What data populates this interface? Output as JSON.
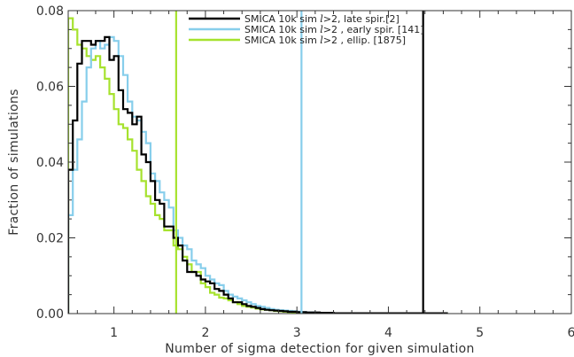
{
  "chart_data": {
    "type": "line",
    "title": "",
    "xlabel": "Number of sigma detection for given simulation",
    "ylabel": "Fraction of simulations",
    "xlim": [
      0.5,
      6
    ],
    "ylim": [
      0,
      0.08
    ],
    "xticks": [
      1,
      2,
      3,
      4,
      5,
      6
    ],
    "xtick_labels": [
      "1",
      "2",
      "3",
      "4",
      "5",
      "6"
    ],
    "yticks": [
      0,
      0.02,
      0.04,
      0.06,
      0.08
    ],
    "ytick_labels": [
      "0.00",
      "0.02",
      "0.04",
      "0.06",
      "0.08"
    ],
    "grid": false,
    "legend_position": "top-right",
    "bin_edges": [
      0.5,
      0.55,
      0.6,
      0.65,
      0.7,
      0.75,
      0.8,
      0.85,
      0.9,
      0.95,
      1.0,
      1.05,
      1.1,
      1.15,
      1.2,
      1.25,
      1.3,
      1.35,
      1.4,
      1.45,
      1.5,
      1.55,
      1.6,
      1.65,
      1.7,
      1.75,
      1.8,
      1.85,
      1.9,
      1.95,
      2.0,
      2.05,
      2.1,
      2.15,
      2.2,
      2.25,
      2.3,
      2.35,
      2.4,
      2.45,
      2.5,
      2.55,
      2.6,
      2.65,
      2.7,
      2.75,
      2.8,
      2.85,
      2.9,
      2.95,
      3.0,
      3.05,
      3.1,
      3.15,
      3.2,
      3.25,
      3.3,
      3.35,
      3.4,
      3.45,
      3.5,
      3.55,
      3.6,
      3.65,
      3.7,
      3.75,
      3.8,
      3.85,
      3.9,
      3.95,
      4.0,
      4.05,
      4.1,
      4.15,
      4.2,
      4.25,
      4.3,
      4.35,
      4.4,
      4.45,
      4.5,
      4.55,
      4.6,
      4.65
    ],
    "series": [
      {
        "name": "SMICA 10k sim ",
        "name_suffix": ">2, late spir.[2]",
        "color": "#000000",
        "values": [
          0.038,
          0.051,
          0.066,
          0.072,
          0.072,
          0.071,
          0.072,
          0.072,
          0.073,
          0.067,
          0.068,
          0.059,
          0.054,
          0.053,
          0.05,
          0.052,
          0.042,
          0.04,
          0.035,
          0.03,
          0.029,
          0.023,
          0.023,
          0.02,
          0.018,
          0.014,
          0.011,
          0.011,
          0.01,
          0.009,
          0.0085,
          0.008,
          0.0065,
          0.006,
          0.005,
          0.004,
          0.003,
          0.003,
          0.0025,
          0.002,
          0.0018,
          0.0015,
          0.0012,
          0.001,
          0.0009,
          0.0008,
          0.0007,
          0.0006,
          0.0005,
          0.0005,
          0.0004,
          0.0004,
          0.0003,
          0.0003,
          0.0003,
          0.0002,
          0.0002,
          0.0002,
          0.0001,
          0.0001,
          0.0001,
          0.0001,
          0.0001,
          0.0001,
          0.0001,
          0.0001,
          0.0001,
          0.0001,
          0.0001,
          0.0001,
          0.0001,
          0.0001,
          0.0001,
          0.0001,
          0.0001,
          0.0001,
          0.0001,
          0.0001,
          0.0001,
          0.0001,
          0.0001,
          0.0001,
          0.0001
        ],
        "marker_x": 4.38
      },
      {
        "name": "SMICA 10k sim ",
        "name_suffix": ">2 , early spir. [141]",
        "color": "#87CEEB",
        "values": [
          0.026,
          0.038,
          0.046,
          0.056,
          0.065,
          0.07,
          0.072,
          0.07,
          0.071,
          0.073,
          0.072,
          0.068,
          0.063,
          0.056,
          0.052,
          0.051,
          0.048,
          0.045,
          0.037,
          0.035,
          0.032,
          0.03,
          0.028,
          0.022,
          0.02,
          0.018,
          0.017,
          0.014,
          0.013,
          0.012,
          0.01,
          0.009,
          0.008,
          0.0075,
          0.006,
          0.005,
          0.0045,
          0.004,
          0.0035,
          0.003,
          0.0025,
          0.002,
          0.0018,
          0.0015,
          0.0012,
          0.001,
          0.0009,
          0.0008,
          0.0007,
          0.0006,
          0.0005,
          0.0004,
          0.0003,
          0.0003,
          0.0002,
          0.0002,
          0.0002,
          0.0001,
          0.0001,
          0.0001,
          0.0001,
          0.0001,
          0.0001,
          0.0001,
          0.0001,
          0.0001,
          0.0001,
          0.0001,
          0.0001,
          0.0001,
          0.0001,
          0.0001,
          0.0001,
          0.0001,
          0.0001,
          0.0001,
          0.0001,
          0.0001,
          0.0001,
          0.0001,
          0.0001,
          0.0001,
          0.0001
        ],
        "marker_x": 3.05
      },
      {
        "name": "SMICA 10k sim ",
        "name_suffix": ">2 , ellip. [1875]",
        "color": "#A6E22E",
        "values": [
          0.078,
          0.075,
          0.071,
          0.07,
          0.068,
          0.067,
          0.068,
          0.065,
          0.062,
          0.058,
          0.054,
          0.05,
          0.049,
          0.046,
          0.043,
          0.038,
          0.035,
          0.031,
          0.029,
          0.026,
          0.025,
          0.022,
          0.022,
          0.018,
          0.017,
          0.015,
          0.013,
          0.011,
          0.011,
          0.008,
          0.007,
          0.0055,
          0.005,
          0.0042,
          0.004,
          0.0035,
          0.003,
          0.0025,
          0.002,
          0.0018,
          0.0016,
          0.0013,
          0.0011,
          0.001,
          0.0009,
          0.0007,
          0.0006,
          0.0005,
          0.0004,
          0.0003,
          0.0003,
          0.0002,
          0.0002,
          0.0002,
          0.0001,
          0.0001,
          0.0001,
          0.0001,
          0.0001,
          0.0001,
          0.0001,
          0.0001,
          0.0001,
          0.0001,
          0.0001,
          0.0001,
          0.0001,
          0.0001,
          0.0001,
          0.0001,
          0.0001,
          0.0001,
          0.0001,
          0.0001,
          0.0001,
          0.0001,
          0.0001,
          0.0001,
          0.0001,
          0.0001,
          0.0001,
          0.0001,
          0.0001
        ],
        "marker_x": 1.68
      }
    ]
  }
}
